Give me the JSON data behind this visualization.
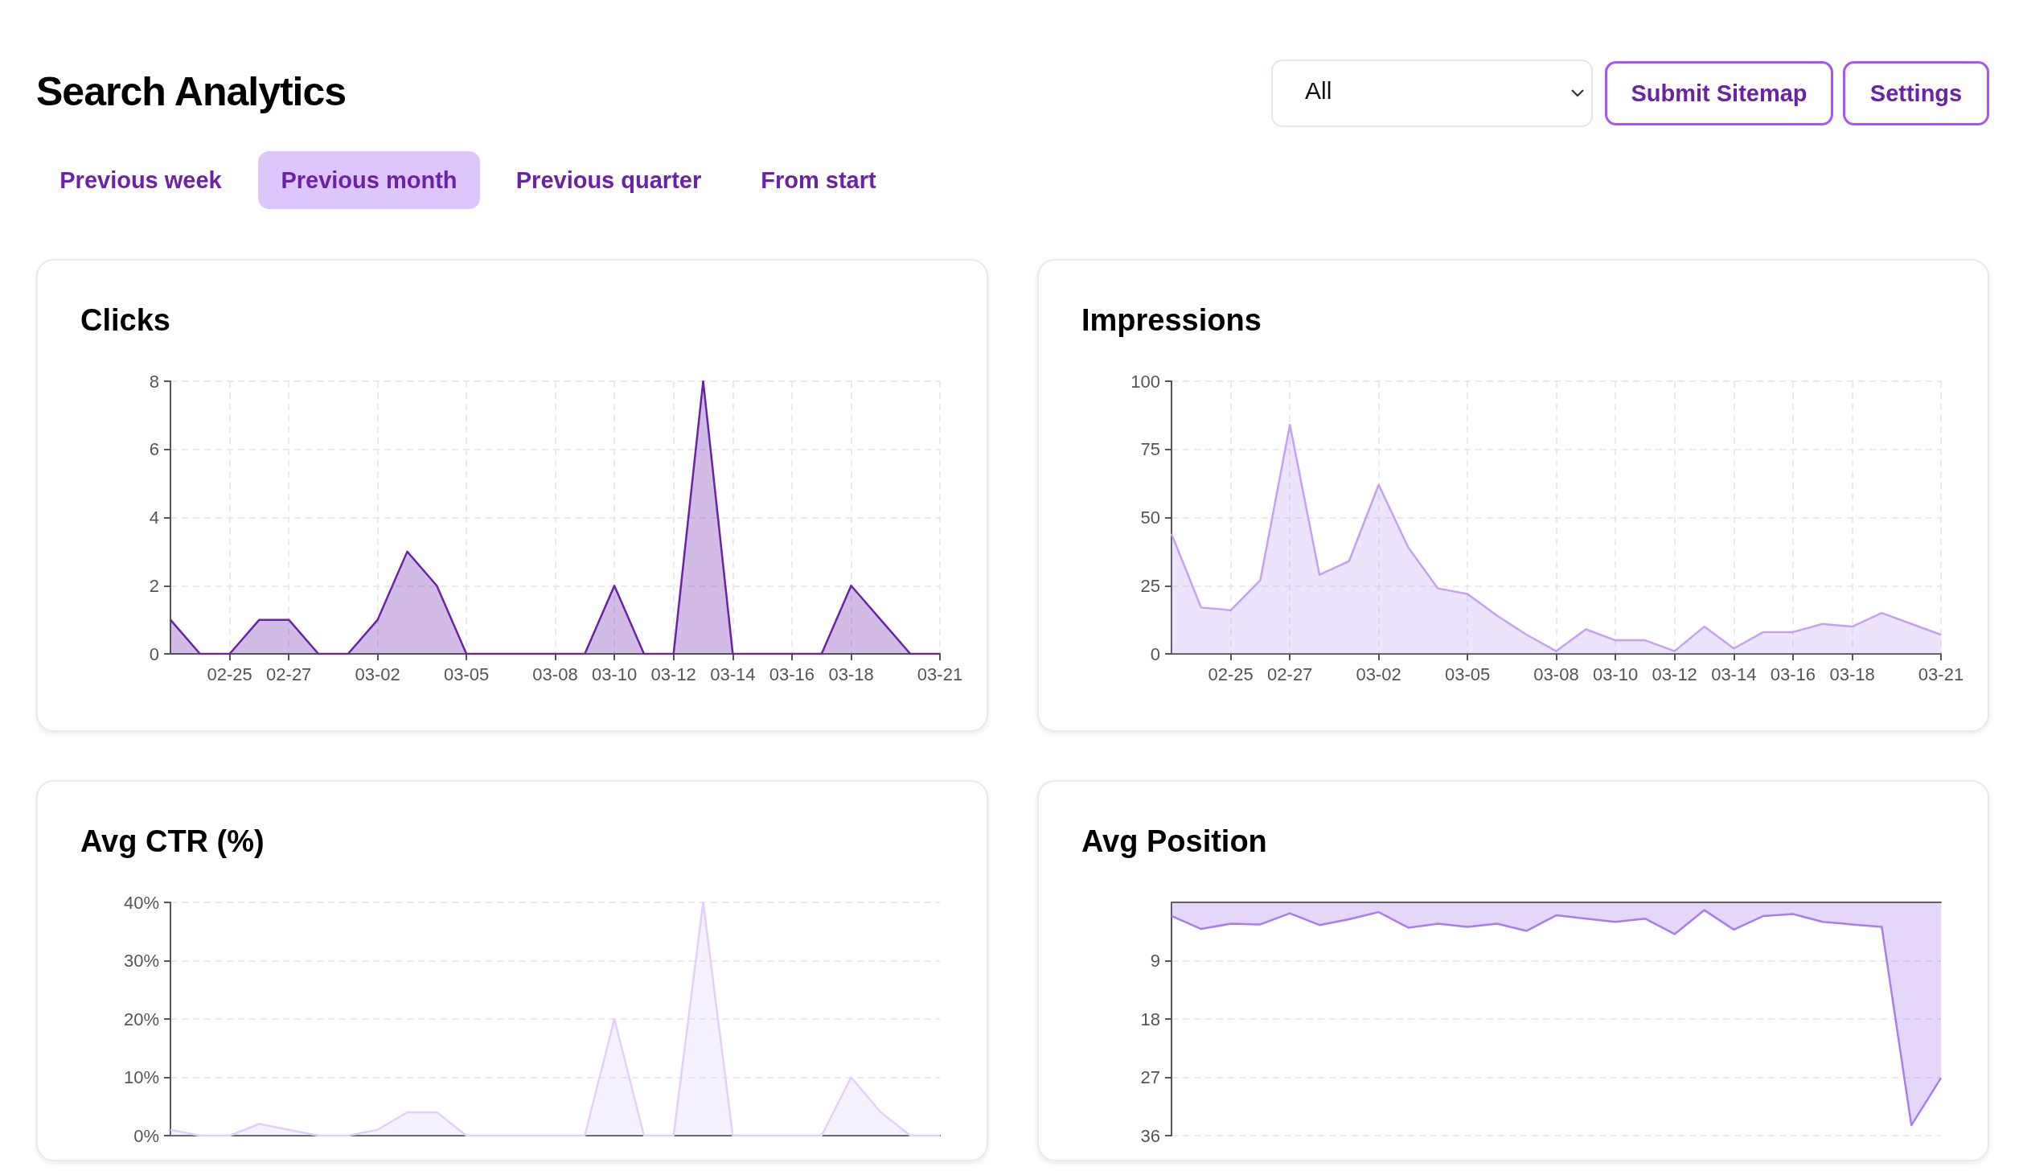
{
  "chart_data": [
    {
      "type": "other",
      "title": "Search Analytics",
      "annotations": [
        "All",
        "Submit Sitemap",
        "Settings",
        "Previous week",
        "Previous month",
        "Previous quarter",
        "From start"
      ]
    },
    {
      "type": "area",
      "title": "Clicks",
      "categories": [
        null,
        null,
        "02-25",
        null,
        "02-27",
        null,
        null,
        "03-02",
        null,
        null,
        "03-05",
        null,
        null,
        "03-08",
        null,
        "03-10",
        null,
        "03-12",
        null,
        "03-14",
        null,
        "03-16",
        null,
        "03-18",
        null,
        null,
        "03-21"
      ],
      "series": [
        {
          "color": "#6b21a8",
          "values": [
            1,
            0,
            0,
            1,
            1,
            0,
            0,
            1,
            3,
            2,
            0,
            0,
            0,
            0,
            0,
            2,
            0,
            0,
            8,
            0,
            0,
            0,
            0,
            2,
            1,
            0,
            0
          ]
        }
      ],
      "ylim": [
        0,
        8
      ],
      "yticks": [
        0,
        2,
        4,
        6,
        8
      ],
      "grid": true
    },
    {
      "type": "area",
      "title": "Impressions",
      "categories": [
        null,
        null,
        "02-25",
        null,
        "02-27",
        null,
        null,
        "03-02",
        null,
        null,
        "03-05",
        null,
        null,
        "03-08",
        null,
        "03-10",
        null,
        "03-12",
        null,
        "03-14",
        null,
        "03-16",
        null,
        "03-18",
        null,
        null,
        "03-21"
      ],
      "series": [
        {
          "color": "#c4a1f5",
          "values": [
            44,
            17,
            16,
            27,
            84,
            29,
            34,
            62,
            39,
            24,
            22,
            14,
            7,
            1,
            9,
            5,
            5,
            1,
            10,
            2,
            8,
            8,
            11,
            10,
            15,
            11,
            7
          ]
        }
      ],
      "ylim": [
        0,
        100
      ],
      "yticks": [
        0,
        25,
        50,
        75,
        100
      ],
      "grid": true
    },
    {
      "type": "area",
      "title": "Avg CTR (%)",
      "categories": [
        null,
        null,
        null,
        null,
        null,
        null,
        null,
        null,
        null,
        null,
        null,
        null,
        null,
        null,
        null,
        null,
        null,
        null,
        null,
        null,
        null,
        null,
        null,
        null,
        null,
        null,
        null
      ],
      "series": [
        {
          "color": "#e2cffb",
          "values": [
            1,
            0,
            0,
            2,
            1,
            0,
            0,
            1,
            4,
            4,
            0,
            0,
            0,
            0,
            0,
            20,
            0,
            0,
            40,
            0,
            0,
            0,
            0,
            10,
            4,
            0,
            0
          ]
        }
      ],
      "ylim": [
        0,
        40
      ],
      "yticks": [
        {
          "value": 0,
          "label": "0%"
        },
        {
          "value": 10,
          "label": "10%"
        },
        {
          "value": 20,
          "label": "20%"
        },
        {
          "value": 30,
          "label": "30%"
        },
        {
          "value": 40,
          "label": "40%"
        }
      ],
      "grid": true,
      "tick_labels": "y"
    },
    {
      "type": "area",
      "title": "Avg Position",
      "categories": [
        null,
        null,
        null,
        null,
        null,
        null,
        null,
        null,
        null,
        null,
        null,
        null,
        null,
        null,
        null,
        null,
        null,
        null,
        null,
        null,
        null,
        null,
        null,
        null,
        null,
        null,
        null
      ],
      "series": [
        {
          "color": "#a97cf0",
          "values": [
            2.1,
            4.1,
            3.3,
            3.4,
            1.7,
            3.5,
            2.6,
            1.5,
            3.9,
            3.3,
            3.8,
            3.3,
            4.4,
            2.0,
            2.5,
            3.0,
            2.5,
            4.9,
            1.2,
            4.2,
            2.1,
            1.8,
            3.0,
            3.4,
            3.8,
            34.4,
            27.1
          ]
        }
      ],
      "ylim": [
        36,
        0
      ],
      "yticks": [
        9,
        18,
        27,
        36
      ],
      "grid": true,
      "tick_labels": "y"
    }
  ]
}
